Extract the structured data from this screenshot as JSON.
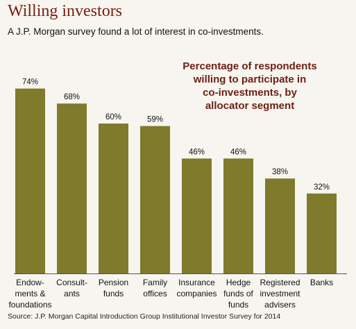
{
  "header": {
    "title": "Willing investors",
    "subtitle": "A J.P. Morgan survey found a lot of interest in co-investments."
  },
  "source": "Source: J.P. Morgan Capital Introduction Group Institutional Investor Survey for 2014",
  "colors": {
    "bar": "#7f7a2c",
    "title": "#7a1b0f",
    "annotation": "#6e1e12",
    "background": "#f6f5ef"
  },
  "chart_data": {
    "type": "bar",
    "title": "",
    "annotation": [
      "Percentage of respondents",
      "willing to participate in",
      "co-investments, by",
      "allocator segment"
    ],
    "categories": [
      [
        "Endow-",
        "ments &",
        "foundations"
      ],
      [
        "Consult-",
        "ants"
      ],
      [
        "Pension",
        "funds"
      ],
      [
        "Family",
        "offices"
      ],
      [
        "Insurance",
        "companies"
      ],
      [
        "Hedge",
        "funds of",
        "funds"
      ],
      [
        "Registered",
        "investment",
        "advisers"
      ],
      [
        "Banks"
      ]
    ],
    "values": [
      74,
      68,
      60,
      59,
      46,
      46,
      38,
      32
    ],
    "value_labels": [
      "74%",
      "68%",
      "60%",
      "59%",
      "46%",
      "46%",
      "38%",
      "32%"
    ],
    "ylim": [
      0,
      100
    ],
    "xlabel": "",
    "ylabel": "",
    "grid": false,
    "legend": "none"
  }
}
